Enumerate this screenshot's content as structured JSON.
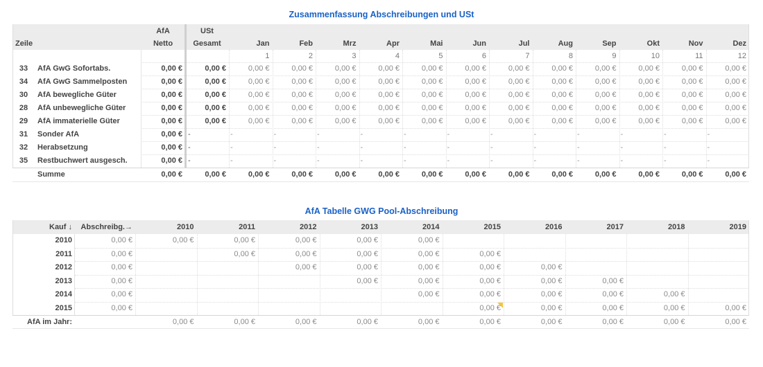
{
  "summary": {
    "title": "Zusammenfassung Abschreibungen und USt",
    "header_top": {
      "afa": "AfA",
      "ust": "USt"
    },
    "header": {
      "zeile": "Zeile",
      "netto": "Netto",
      "gesamt": "Gesamt"
    },
    "months": [
      "Jan",
      "Feb",
      "Mrz",
      "Apr",
      "Mai",
      "Jun",
      "Jul",
      "Aug",
      "Sep",
      "Okt",
      "Nov",
      "Dez"
    ],
    "month_numbers": [
      "1",
      "2",
      "3",
      "4",
      "5",
      "6",
      "7",
      "8",
      "9",
      "10",
      "11",
      "12"
    ],
    "rows": [
      {
        "zeile": "33",
        "label": "AfA GwG Sofortabs.",
        "netto": "0,00 €",
        "gesamt": "0,00 €",
        "months": [
          "0,00 €",
          "0,00 €",
          "0,00 €",
          "0,00 €",
          "0,00 €",
          "0,00 €",
          "0,00 €",
          "0,00 €",
          "0,00 €",
          "0,00 €",
          "0,00 €",
          "0,00 €"
        ]
      },
      {
        "zeile": "34",
        "label": "AfA GwG Sammelposten",
        "netto": "0,00 €",
        "gesamt": "0,00 €",
        "months": [
          "0,00 €",
          "0,00 €",
          "0,00 €",
          "0,00 €",
          "0,00 €",
          "0,00 €",
          "0,00 €",
          "0,00 €",
          "0,00 €",
          "0,00 €",
          "0,00 €",
          "0,00 €"
        ]
      },
      {
        "zeile": "30",
        "label": "AfA bewegliche Güter",
        "netto": "0,00 €",
        "gesamt": "0,00 €",
        "months": [
          "0,00 €",
          "0,00 €",
          "0,00 €",
          "0,00 €",
          "0,00 €",
          "0,00 €",
          "0,00 €",
          "0,00 €",
          "0,00 €",
          "0,00 €",
          "0,00 €",
          "0,00 €"
        ]
      },
      {
        "zeile": "28",
        "label": "AfA unbewegliche Güter",
        "netto": "0,00 €",
        "gesamt": "0,00 €",
        "months": [
          "0,00 €",
          "0,00 €",
          "0,00 €",
          "0,00 €",
          "0,00 €",
          "0,00 €",
          "0,00 €",
          "0,00 €",
          "0,00 €",
          "0,00 €",
          "0,00 €",
          "0,00 €"
        ]
      },
      {
        "zeile": "29",
        "label": "AfA immaterielle Güter",
        "netto": "0,00 €",
        "gesamt": "0,00 €",
        "months": [
          "0,00 €",
          "0,00 €",
          "0,00 €",
          "0,00 €",
          "0,00 €",
          "0,00 €",
          "0,00 €",
          "0,00 €",
          "0,00 €",
          "0,00 €",
          "0,00 €",
          "0,00 €"
        ]
      },
      {
        "zeile": "31",
        "label": "Sonder AfA",
        "netto": "0,00 €",
        "gesamt": "-",
        "months": [
          "-",
          "-",
          "-",
          "-",
          "-",
          "-",
          "-",
          "-",
          "-",
          "-",
          "-",
          "-"
        ]
      },
      {
        "zeile": "32",
        "label": "Herabsetzung",
        "netto": "0,00 €",
        "gesamt": "-",
        "months": [
          "-",
          "-",
          "-",
          "-",
          "-",
          "-",
          "-",
          "-",
          "-",
          "-",
          "-",
          "-"
        ]
      },
      {
        "zeile": "35",
        "label": "Restbuchwert ausgesch.",
        "netto": "0,00 €",
        "gesamt": "-",
        "months": [
          "-",
          "-",
          "-",
          "-",
          "-",
          "-",
          "-",
          "-",
          "-",
          "-",
          "-",
          "-"
        ]
      }
    ],
    "total": {
      "label": "Summe",
      "netto": "0,00 €",
      "gesamt": "0,00 €",
      "months": [
        "0,00 €",
        "0,00 €",
        "0,00 €",
        "0,00 €",
        "0,00 €",
        "0,00 €",
        "0,00 €",
        "0,00 €",
        "0,00 €",
        "0,00 €",
        "0,00 €",
        "0,00 €"
      ]
    }
  },
  "pool": {
    "title": "AfA Tabelle GWG Pool-Abschreibung",
    "header": {
      "kauf": "Kauf ↓",
      "abschreibung": "Abschreibg.→"
    },
    "years": [
      "2010",
      "2011",
      "2012",
      "2013",
      "2014",
      "2015",
      "2016",
      "2017",
      "2018",
      "2019"
    ],
    "rows": [
      {
        "year": "2010",
        "amount": "0,00 €",
        "values": [
          "0,00 €",
          "0,00 €",
          "0,00 €",
          "0,00 €",
          "0,00 €",
          "",
          "",
          "",
          "",
          ""
        ]
      },
      {
        "year": "2011",
        "amount": "0,00 €",
        "values": [
          "",
          "0,00 €",
          "0,00 €",
          "0,00 €",
          "0,00 €",
          "0,00 €",
          "",
          "",
          "",
          ""
        ]
      },
      {
        "year": "2012",
        "amount": "0,00 €",
        "values": [
          "",
          "",
          "0,00 €",
          "0,00 €",
          "0,00 €",
          "0,00 €",
          "0,00 €",
          "",
          "",
          ""
        ]
      },
      {
        "year": "2013",
        "amount": "0,00 €",
        "values": [
          "",
          "",
          "",
          "0,00 €",
          "0,00 €",
          "0,00 €",
          "0,00 €",
          "0,00 €",
          "",
          ""
        ]
      },
      {
        "year": "2014",
        "amount": "0,00 €",
        "values": [
          "",
          "",
          "",
          "",
          "0,00 €",
          "0,00 €",
          "0,00 €",
          "0,00 €",
          "0,00 €",
          ""
        ]
      },
      {
        "year": "2015",
        "amount": "0,00 €",
        "values": [
          "",
          "",
          "",
          "",
          "",
          "0,00 €",
          "0,00 €",
          "0,00 €",
          "0,00 €",
          "0,00 €"
        ]
      }
    ],
    "total": {
      "label": "AfA im Jahr:",
      "values": [
        "0,00 €",
        "0,00 €",
        "0,00 €",
        "0,00 €",
        "0,00 €",
        "0,00 €",
        "0,00 €",
        "0,00 €",
        "0,00 €",
        "0,00 €"
      ]
    },
    "comment_marker_color": "#f4c43a"
  }
}
